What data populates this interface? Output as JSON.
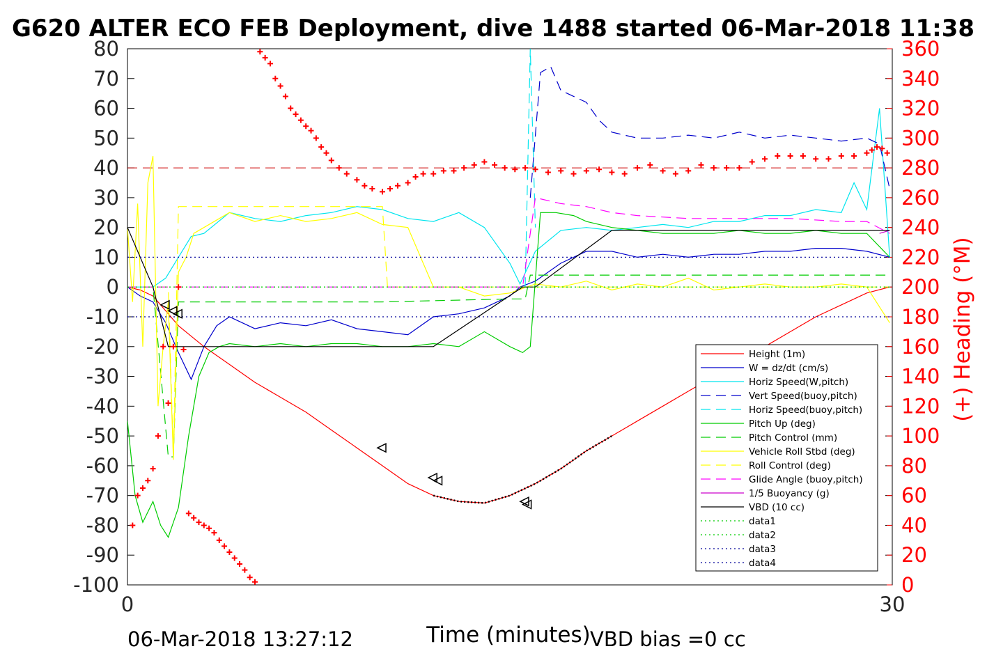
{
  "chart_data": {
    "type": "line",
    "title": "G620 ALTER ECO FEB Deployment, dive 1488 started 06-Mar-2018 11:38",
    "xlabel": "Time (minutes)",
    "ylabel_right": "(+) Heading (°M)",
    "footer_left": "06-Mar-2018 13:27:12",
    "footer_right": "VBD bias =0 cc",
    "xlim": [
      0,
      30
    ],
    "ylim": [
      -100,
      80
    ],
    "ylim_right": [
      0,
      360
    ],
    "x_ticks": [
      "0",
      "30"
    ],
    "y_ticks": [
      "80",
      "70",
      "60",
      "50",
      "40",
      "30",
      "20",
      "10",
      "0",
      "-10",
      "-20",
      "-30",
      "-40",
      "-50",
      "-60",
      "-70",
      "-80",
      "-90",
      "-100"
    ],
    "y_ticks_right": [
      "360",
      "340",
      "320",
      "300",
      "280",
      "260",
      "240",
      "220",
      "200",
      "180",
      "160",
      "140",
      "120",
      "100",
      "80",
      "60",
      "40",
      "20",
      "0"
    ],
    "grid": false,
    "legend_position": "right",
    "series": [
      {
        "name": "Height (1m)",
        "color": "#ff0000",
        "style": "solid",
        "x": [
          0,
          0.5,
          1,
          1.5,
          2,
          3,
          4,
          5,
          6,
          7,
          8,
          9,
          10,
          11,
          12,
          13,
          14,
          15,
          16,
          17,
          18,
          19,
          20,
          21,
          22,
          23,
          24,
          25,
          26,
          27,
          28,
          29,
          29.9
        ],
        "y": [
          0,
          -1,
          -3,
          -8,
          -13,
          -20,
          -26,
          -32,
          -37,
          -42,
          -48,
          -54,
          -60,
          -66,
          -70,
          -72,
          -72.5,
          -70,
          -66,
          -61,
          -55,
          -50,
          -45,
          -40,
          -35,
          -30,
          -25,
          -20,
          -15,
          -10,
          -6,
          -2,
          0
        ]
      },
      {
        "name": "W = dz/dt (cm/s)",
        "color": "#0000cc",
        "style": "solid",
        "x": [
          0,
          0.5,
          1,
          1.5,
          2,
          2.5,
          3,
          3.5,
          4,
          5,
          6,
          7,
          8,
          9,
          10,
          11,
          12,
          13,
          14,
          15,
          15.4,
          16,
          17,
          18,
          19,
          20,
          21,
          22,
          23,
          24,
          25,
          26,
          27,
          28,
          29,
          29.9
        ],
        "y": [
          0,
          -3,
          -5,
          -12,
          -22,
          -31,
          -20,
          -13,
          -10,
          -14,
          -12,
          -13,
          -11,
          -14,
          -15,
          -16,
          -10,
          -9,
          -7,
          -3,
          0,
          2,
          8,
          12,
          12,
          10,
          11,
          10,
          11,
          11,
          12,
          12,
          13,
          13,
          12,
          10
        ]
      },
      {
        "name": "Horiz Speed(W,pitch)",
        "color": "#00e5ee",
        "style": "solid",
        "x": [
          0,
          0.5,
          1,
          1.5,
          2,
          2.5,
          3,
          4,
          5,
          6,
          7,
          8,
          9,
          10,
          11,
          12,
          13,
          14,
          15,
          15.4,
          16,
          17,
          18,
          19,
          20,
          21,
          22,
          23,
          24,
          25,
          26,
          27,
          28,
          28.5,
          29,
          29.5,
          29.9
        ],
        "y": [
          0,
          0,
          0,
          3,
          10,
          17,
          18,
          25,
          23,
          22,
          24,
          25,
          27,
          26,
          23,
          22,
          25,
          20,
          8,
          1,
          12,
          19,
          20,
          19,
          20,
          21,
          20,
          22,
          22,
          24,
          24,
          26,
          25,
          35,
          26,
          60,
          10
        ]
      },
      {
        "name": "Vert Speed(buoy,pitch)",
        "color": "#0000cc",
        "style": "dash",
        "x": [
          15.8,
          16.2,
          16.6,
          17,
          17.5,
          18,
          18.5,
          19,
          19.5,
          20,
          21,
          22,
          23,
          24,
          25,
          26,
          27,
          28,
          29,
          29.5,
          29.9
        ],
        "y": [
          30,
          72,
          74,
          66,
          64,
          62,
          56,
          52,
          51,
          50,
          50,
          51,
          50,
          52,
          50,
          51,
          50,
          49,
          50,
          48,
          33
        ]
      },
      {
        "name": "Horiz Speed(buoy,pitch)",
        "color": "#00e5ee",
        "style": "dash",
        "x": [
          15.6,
          15.8,
          16
        ],
        "y": [
          0,
          80,
          20
        ]
      },
      {
        "name": "Pitch Up (deg)",
        "color": "#00cc00",
        "style": "solid",
        "x": [
          0,
          0.3,
          0.6,
          1,
          1.3,
          1.6,
          2,
          2.4,
          2.8,
          3.2,
          3.6,
          4,
          5,
          6,
          7,
          8,
          9,
          10,
          11,
          12,
          13,
          14,
          15,
          15.5,
          15.8,
          16.2,
          16.8,
          17.5,
          18,
          19,
          20,
          21,
          22,
          23,
          24,
          25,
          26,
          27,
          28,
          29,
          29.9
        ],
        "y": [
          -45,
          -70,
          -79,
          -72,
          -80,
          -84,
          -74,
          -50,
          -30,
          -22,
          -20,
          -19,
          -20,
          -19,
          -20,
          -19,
          -19,
          -20,
          -20,
          -19,
          -20,
          -15,
          -20,
          -22,
          -20,
          25,
          25,
          24,
          22,
          20,
          19,
          18,
          18,
          18,
          19,
          18,
          18,
          19,
          18,
          18,
          10
        ]
      },
      {
        "name": "Pitch Control (mm)",
        "color": "#00cc00",
        "style": "dash",
        "x": [
          0,
          1,
          1.6,
          1.8,
          2,
          3,
          10,
          15,
          15.6,
          15.8,
          16,
          29.9
        ],
        "y": [
          0,
          0,
          -57,
          -57,
          -5,
          -5,
          -5,
          -4,
          -4,
          4,
          4,
          4
        ]
      },
      {
        "name": "Vehicle Roll Stbd (deg)",
        "color": "#ffff00",
        "style": "solid",
        "x": [
          0,
          0.2,
          0.4,
          0.6,
          0.8,
          1,
          1.2,
          1.4,
          1.6,
          1.8,
          2,
          2.3,
          2.6,
          3,
          4,
          5,
          6,
          7,
          8,
          9,
          10,
          11,
          12,
          13,
          14,
          15,
          16,
          17,
          18,
          19,
          20,
          21,
          22,
          23,
          24,
          25,
          26,
          27,
          28,
          29,
          29.9
        ],
        "y": [
          20,
          -5,
          28,
          -20,
          35,
          44,
          -40,
          -20,
          -5,
          -58,
          5,
          10,
          18,
          20,
          25,
          22,
          24,
          22,
          23,
          25,
          21,
          20,
          0,
          0,
          -3,
          -2,
          1,
          0,
          2,
          -1,
          1,
          0,
          3,
          -1,
          0,
          1,
          0,
          0,
          1,
          0,
          -12
        ]
      },
      {
        "name": "Roll Control (deg)",
        "color": "#ffff00",
        "style": "dash",
        "x": [
          0,
          1.6,
          1.8,
          2,
          10,
          10.2,
          12,
          15,
          29.9
        ],
        "y": [
          0,
          0,
          -57,
          27,
          27,
          0,
          0,
          0,
          0
        ]
      },
      {
        "name": "Glide Angle (buoy,pitch)",
        "color": "#ff00ff",
        "style": "dash",
        "x": [
          0,
          15,
          15.5,
          16,
          17,
          18,
          19,
          20,
          22,
          24,
          26,
          28,
          29,
          29.9
        ],
        "y": [
          0,
          0,
          0,
          30,
          28,
          27,
          25,
          24,
          23,
          23,
          23,
          22,
          22,
          18
        ]
      },
      {
        "name": "1/5 Buoyancy (g)",
        "color": "#cc00cc",
        "style": "solid",
        "x": [
          29.5,
          29.9
        ],
        "y": [
          18,
          19
        ]
      },
      {
        "name": "VBD (10 cc)",
        "color": "#000000",
        "style": "solid",
        "x": [
          0,
          0.5,
          1,
          1.6,
          2,
          10,
          12,
          15.5,
          16,
          19,
          19.5,
          29.9
        ],
        "y": [
          20,
          10,
          0,
          -20,
          -20,
          -20,
          -20,
          0,
          0,
          19,
          19,
          19
        ]
      },
      {
        "name": "data1",
        "color": "#00cc00",
        "style": "dot",
        "x": [
          0,
          29.9
        ],
        "y": [
          0,
          0
        ]
      },
      {
        "name": "data2",
        "color": "#00cc00",
        "style": "dot",
        "x": [
          0,
          29.9
        ],
        "y": [
          0,
          0
        ]
      },
      {
        "name": "data3",
        "color": "#000099",
        "style": "dot",
        "x": [
          0,
          29.9
        ],
        "y": [
          10,
          10
        ]
      },
      {
        "name": "data4",
        "color": "#000099",
        "style": "dot",
        "x": [
          0,
          29.9
        ],
        "y": [
          -10,
          -10
        ]
      }
    ],
    "heading_reference": {
      "color": "#cc0000",
      "y_right": 280
    },
    "heading": {
      "color": "#ff0000",
      "marker": "+",
      "x": [
        0.2,
        0.4,
        0.6,
        0.8,
        1,
        1.2,
        1.4,
        1.6,
        1.8,
        2,
        2.2,
        2.4,
        2.6,
        2.8,
        3,
        3.2,
        3.4,
        3.6,
        3.8,
        4,
        4.2,
        4.4,
        4.6,
        4.8,
        5,
        5.2,
        5.4,
        5.6,
        5.8,
        6,
        6.2,
        6.4,
        6.6,
        6.8,
        7,
        7.2,
        7.4,
        7.6,
        7.8,
        8,
        8.3,
        8.6,
        9,
        9.3,
        9.6,
        10,
        10.3,
        10.6,
        11,
        11.3,
        11.6,
        12,
        12.4,
        12.8,
        13.2,
        13.6,
        14,
        14.4,
        14.8,
        15.2,
        15.6,
        16,
        16.5,
        17,
        17.5,
        18,
        18.5,
        19,
        19.5,
        20,
        20.5,
        21,
        21.5,
        22,
        22.5,
        23,
        23.5,
        24,
        24.5,
        25,
        25.5,
        26,
        26.5,
        27,
        27.5,
        28,
        28.5,
        29,
        29.2,
        29.4,
        29.6,
        29.8
      ],
      "y": [
        40,
        60,
        65,
        70,
        78,
        100,
        160,
        122,
        160,
        200,
        158,
        48,
        45,
        42,
        40,
        38,
        35,
        30,
        26,
        22,
        18,
        14,
        10,
        5,
        2,
        358,
        354,
        350,
        340,
        335,
        328,
        320,
        316,
        312,
        308,
        305,
        300,
        294,
        290,
        285,
        280,
        276,
        272,
        268,
        266,
        264,
        266,
        268,
        270,
        274,
        276,
        276,
        278,
        278,
        280,
        282,
        284,
        282,
        280,
        279,
        280,
        279,
        277,
        278,
        276,
        278,
        279,
        277,
        276,
        280,
        282,
        278,
        276,
        278,
        282,
        280,
        280,
        280,
        284,
        286,
        288,
        288,
        288,
        286,
        286,
        288,
        288,
        290,
        292,
        294,
        293,
        290
      ]
    },
    "markers": {
      "color": "#000000",
      "shape": "triangle",
      "x": [
        1.5,
        1.8,
        2,
        10,
        12,
        12.2,
        15.6,
        15.7
      ],
      "y": [
        -6,
        -8,
        -9,
        -54,
        -64,
        -65,
        -72,
        -73
      ]
    }
  }
}
